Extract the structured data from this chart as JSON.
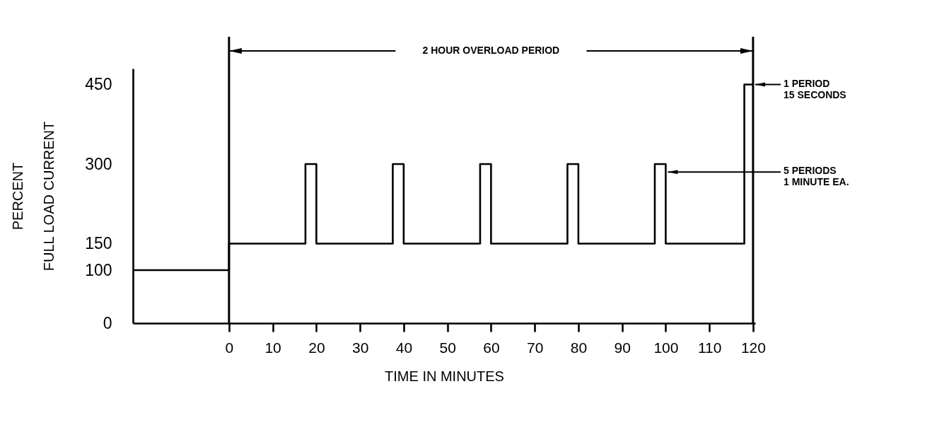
{
  "chart_data": {
    "type": "step",
    "xlabel": "TIME IN MINUTES",
    "ylabel": "PERCENT\nFULL LOAD CURRENT",
    "x": [
      -22,
      0,
      17.5,
      20,
      37.5,
      40,
      57.5,
      60,
      77.5,
      80,
      97.5,
      100,
      118,
      120
    ],
    "series": [
      {
        "color": "#000000",
        "values": [
          100,
          150,
          300,
          150,
          300,
          150,
          300,
          150,
          300,
          150,
          300,
          150,
          450,
          450
        ]
      }
    ],
    "xlim": [
      -22,
      120.5
    ],
    "xticks": [
      0,
      10,
      20,
      30,
      40,
      50,
      60,
      70,
      80,
      90,
      100,
      110,
      120
    ],
    "ylim": [
      0,
      480
    ],
    "yticks": [
      0,
      100,
      150,
      300,
      450
    ],
    "ref_lines": [
      {
        "axis": "x",
        "value": 0,
        "color": "#000000"
      },
      {
        "axis": "x",
        "value": 120,
        "color": "#000000"
      }
    ],
    "annotations": [
      "2 HOUR OVERLOAD PERIOD",
      "1 PERIOD\n15 SECONDS",
      {
        "text": "5 PERIODS\n1 MINUTE EA.",
        "x": 100,
        "y": 285
      }
    ],
    "grid": false,
    "marker": "none",
    "line_style": "solid"
  }
}
